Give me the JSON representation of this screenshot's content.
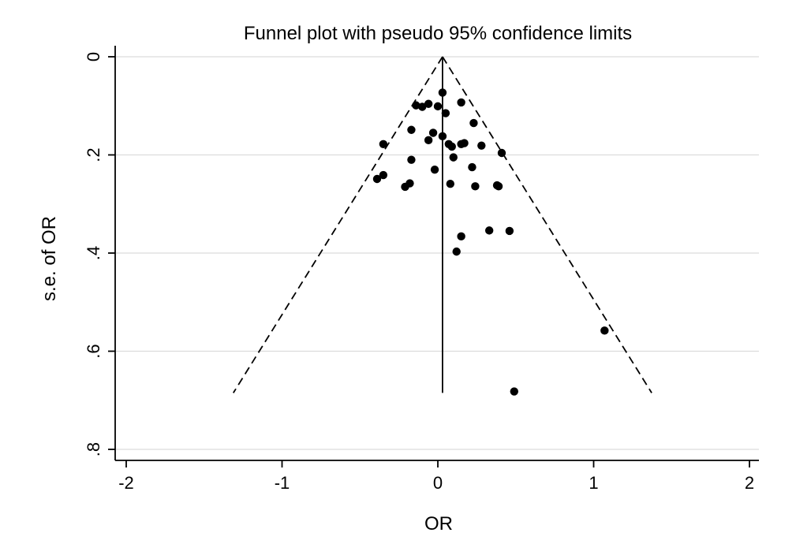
{
  "chart_data": {
    "type": "scatter",
    "title": "Funnel plot with pseudo 95% confidence limits",
    "xlabel": "OR",
    "ylabel": "s.e. of OR",
    "xlim": [
      -2,
      2
    ],
    "ylim": [
      0,
      0.8
    ],
    "y_reversed": true,
    "x_ticks": [
      -2,
      -1,
      0,
      1,
      2
    ],
    "y_ticks": [
      0,
      0.2,
      0.4,
      0.6,
      0.8
    ],
    "x_tick_labels": [
      "-2",
      "-1",
      "0",
      "1",
      "2"
    ],
    "y_tick_labels": [
      "0",
      ".2",
      ".4",
      ".6",
      ".8"
    ],
    "grid": "horizontal",
    "legend": "none",
    "pooled_estimate": 0.03,
    "funnel_max_se": 0.685,
    "point_color": "#000000",
    "series": [
      {
        "points": [
          {
            "x": 0.03,
            "y": 0.073
          },
          {
            "x": 0.15,
            "y": 0.093
          },
          {
            "x": -0.14,
            "y": 0.099
          },
          {
            "x": -0.06,
            "y": 0.096
          },
          {
            "x": -0.1,
            "y": 0.102
          },
          {
            "x": 0.0,
            "y": 0.101
          },
          {
            "x": 0.05,
            "y": 0.115
          },
          {
            "x": 0.23,
            "y": 0.135
          },
          {
            "x": -0.17,
            "y": 0.149
          },
          {
            "x": -0.03,
            "y": 0.155
          },
          {
            "x": 0.03,
            "y": 0.162
          },
          {
            "x": -0.06,
            "y": 0.17
          },
          {
            "x": 0.07,
            "y": 0.178
          },
          {
            "x": 0.09,
            "y": 0.183
          },
          {
            "x": 0.15,
            "y": 0.178
          },
          {
            "x": 0.17,
            "y": 0.176
          },
          {
            "x": 0.28,
            "y": 0.181
          },
          {
            "x": -0.35,
            "y": 0.178
          },
          {
            "x": 0.41,
            "y": 0.196
          },
          {
            "x": 0.1,
            "y": 0.205
          },
          {
            "x": -0.17,
            "y": 0.21
          },
          {
            "x": 0.22,
            "y": 0.225
          },
          {
            "x": -0.02,
            "y": 0.23
          },
          {
            "x": -0.35,
            "y": 0.241
          },
          {
            "x": -0.39,
            "y": 0.249
          },
          {
            "x": -0.18,
            "y": 0.258
          },
          {
            "x": -0.21,
            "y": 0.265
          },
          {
            "x": 0.08,
            "y": 0.259
          },
          {
            "x": 0.24,
            "y": 0.264
          },
          {
            "x": 0.38,
            "y": 0.262
          },
          {
            "x": 0.39,
            "y": 0.264
          },
          {
            "x": 0.33,
            "y": 0.354
          },
          {
            "x": 0.46,
            "y": 0.355
          },
          {
            "x": 0.15,
            "y": 0.366
          },
          {
            "x": 0.12,
            "y": 0.397
          },
          {
            "x": 1.07,
            "y": 0.558
          },
          {
            "x": 0.49,
            "y": 0.682
          }
        ]
      }
    ]
  }
}
